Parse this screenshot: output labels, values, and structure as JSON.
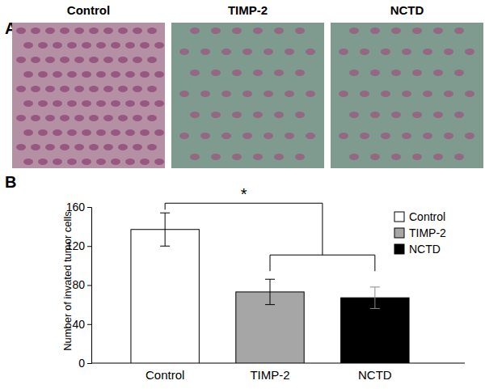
{
  "panel_a": {
    "label": "A",
    "image_titles": [
      "Control",
      "TIMP-2",
      "NCTD"
    ]
  },
  "chart_data": {
    "type": "bar",
    "y_label": "Number of invated tumor cells",
    "annotations": [
      "B",
      "*"
    ],
    "categories": [
      "Control",
      "TIMP-2",
      "NCTD"
    ],
    "values": [
      137,
      73,
      67
    ],
    "errors": [
      17,
      13,
      11
    ],
    "colors": [
      "#ffffff",
      "#a6a6a6",
      "#000000"
    ],
    "ylim": [
      0,
      160
    ],
    "yticks": [
      0,
      40,
      80,
      120,
      160
    ],
    "legend": "upper right"
  }
}
